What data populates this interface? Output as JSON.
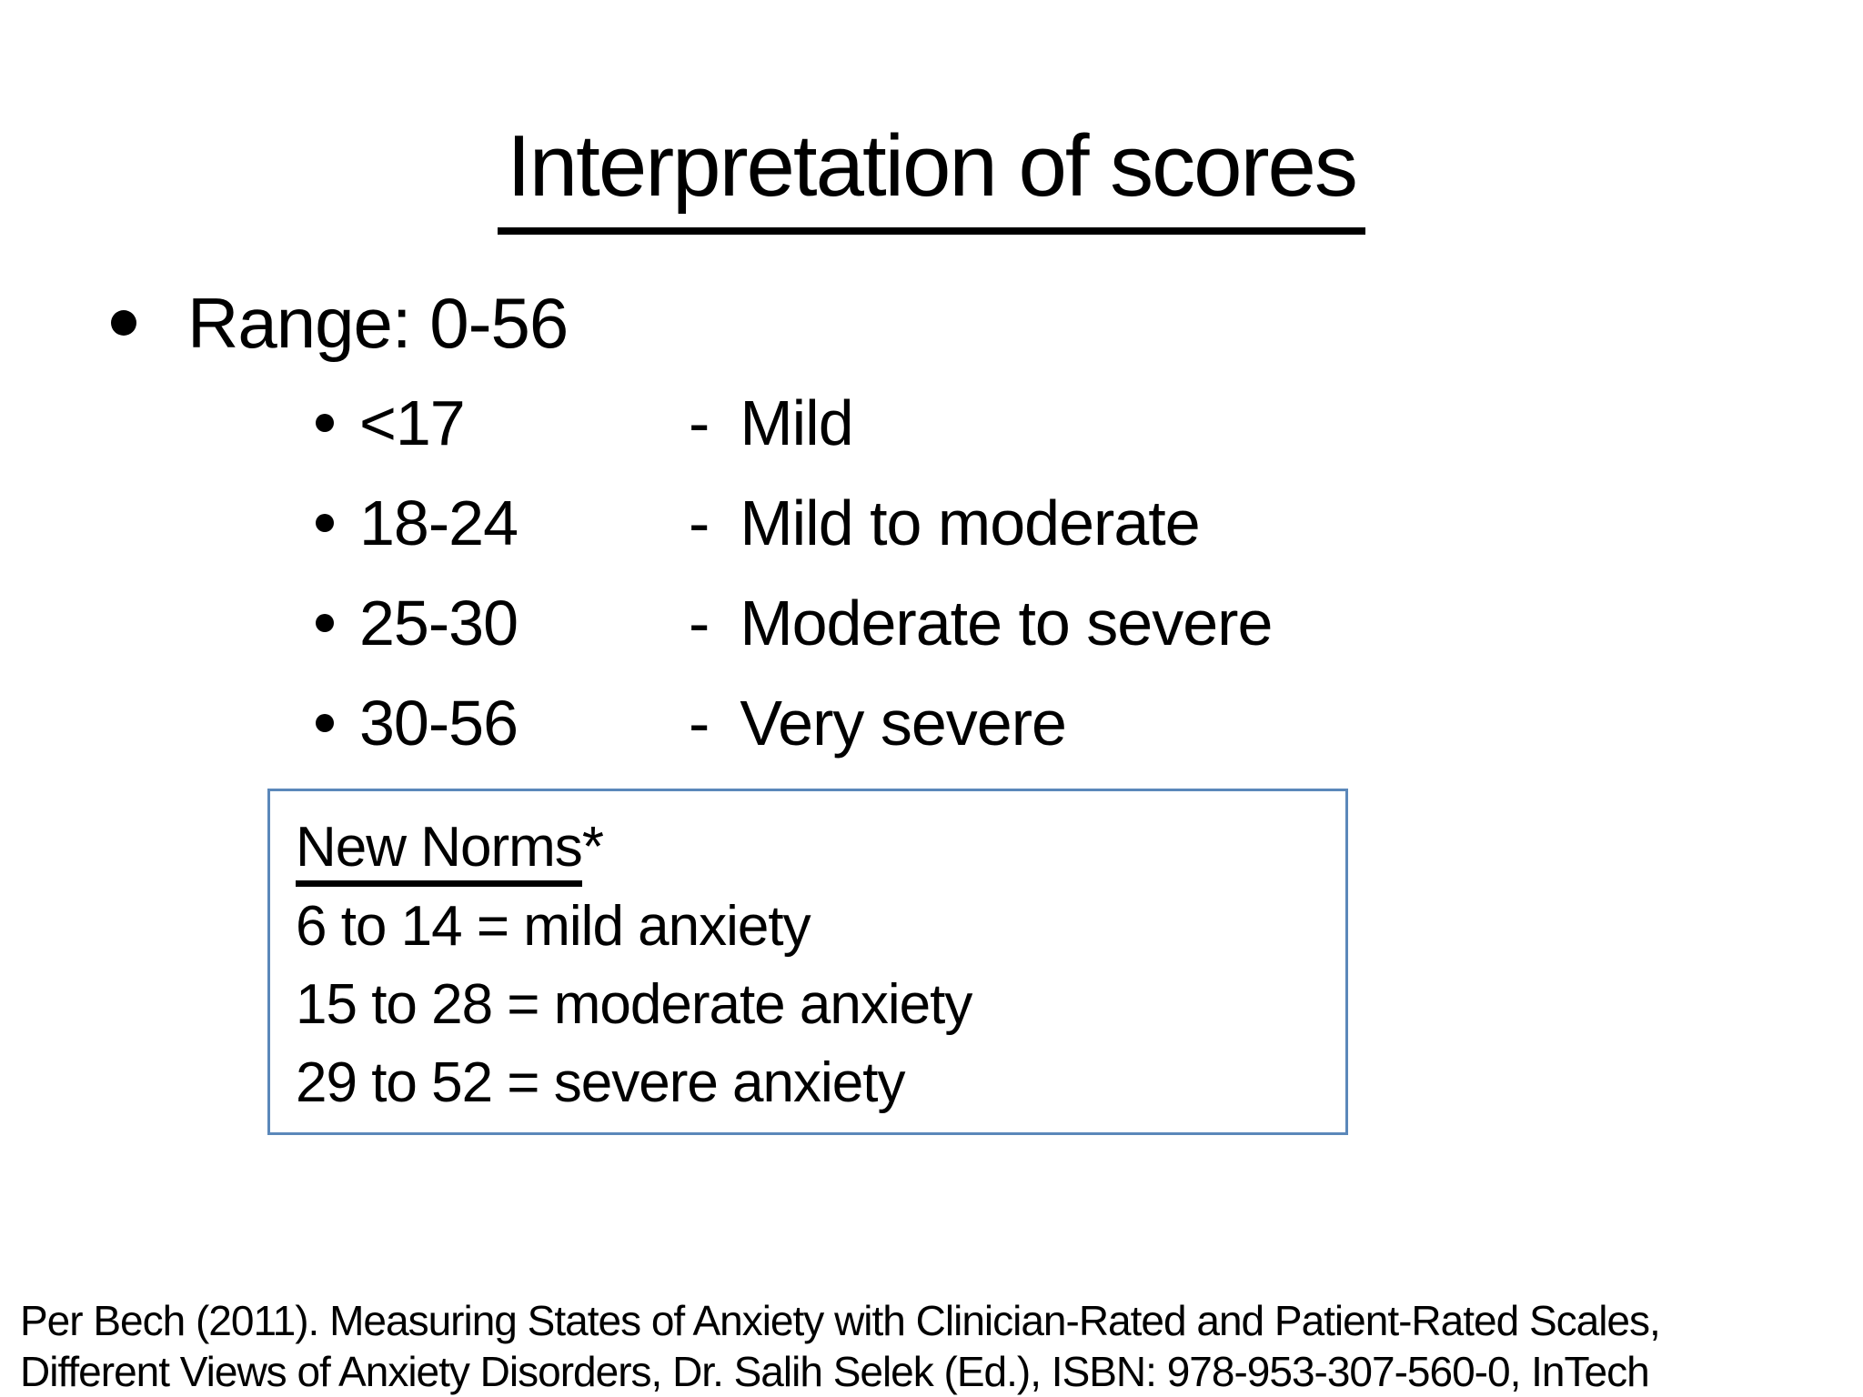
{
  "slide": {
    "title": "Interpretation of scores",
    "main_bullet": "Range: 0-56",
    "score_rows": [
      {
        "range": "<17",
        "sep": "-",
        "label": "Mild"
      },
      {
        "range": "18-24",
        "sep": "-",
        "label": "Mild to moderate"
      },
      {
        "range": "25-30",
        "sep": "-",
        "label": "Moderate to severe"
      },
      {
        "range": "30-56",
        "sep": "-",
        "label": "Very severe"
      }
    ],
    "norms_box": {
      "heading": "New Norms",
      "heading_suffix": "*",
      "lines": [
        "6 to 14 = mild anxiety",
        "15 to 28 = moderate anxiety",
        "29 to 52 = severe anxiety"
      ]
    },
    "footer": {
      "line1": "Per Bech (2011). Measuring States of Anxiety with Clinician-Rated and Patient-Rated Scales,",
      "line2": "Different Views of Anxiety Disorders, Dr. Salih Selek (Ed.), ISBN: 978-953-307-560-0, InTech"
    },
    "colors": {
      "background": "#ffffff",
      "text": "#000000",
      "box_border": "#5b88ba"
    }
  }
}
